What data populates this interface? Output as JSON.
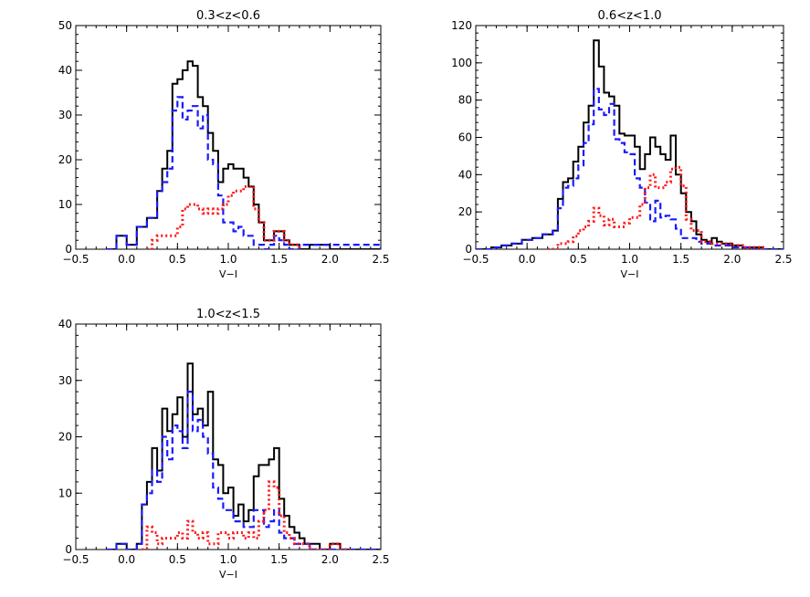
{
  "colors": {
    "total": "#000000",
    "blue": "#1a1aff",
    "red": "#ff1a1a"
  },
  "chart_data": [
    {
      "type": "histogram",
      "title": "0.3<z<0.6",
      "xlabel": "V−I",
      "xlim": [
        -0.5,
        2.5
      ],
      "ylim": [
        0,
        50
      ],
      "xticks": [
        "−0.5",
        "0.0",
        "0.5",
        "1.0",
        "1.5",
        "2.0",
        "2.5"
      ],
      "yticks": [
        "0",
        "10",
        "20",
        "30",
        "40",
        "50"
      ],
      "series": [
        {
          "style": "solid",
          "color": "total",
          "x": [
            -0.2,
            -0.1,
            0,
            0.1,
            0.2,
            0.3,
            0.35,
            0.4,
            0.45,
            0.5,
            0.55,
            0.6,
            0.65,
            0.7,
            0.75,
            0.8,
            0.85,
            0.9,
            0.95,
            1.0,
            1.05,
            1.1,
            1.15,
            1.2,
            1.25,
            1.3,
            1.35,
            1.4,
            1.45,
            1.5,
            1.55,
            1.6,
            1.7,
            1.8,
            2.0,
            2.5
          ],
          "y": [
            0,
            3,
            1,
            5,
            7,
            13,
            18,
            22,
            37,
            38,
            40,
            42,
            41,
            34,
            32,
            26,
            22,
            15,
            18,
            19,
            18,
            18,
            16,
            14,
            10,
            6,
            2,
            2,
            4,
            4,
            2,
            1,
            0,
            1,
            0,
            0
          ]
        },
        {
          "style": "dashed",
          "color": "blue",
          "x": [
            -0.2,
            -0.1,
            0,
            0.1,
            0.2,
            0.3,
            0.35,
            0.4,
            0.45,
            0.5,
            0.55,
            0.6,
            0.65,
            0.7,
            0.75,
            0.8,
            0.85,
            0.9,
            0.95,
            1.0,
            1.05,
            1.1,
            1.15,
            1.2,
            1.25,
            1.3,
            1.35,
            1.4,
            1.45,
            1.5,
            1.55,
            1.6,
            1.7,
            2.5
          ],
          "y": [
            0,
            3,
            1,
            5,
            7,
            13,
            15,
            18,
            31,
            34,
            29,
            31,
            32,
            27,
            30,
            20,
            19,
            12,
            6,
            6,
            4,
            5,
            3,
            3,
            1,
            1,
            0,
            1,
            3,
            2,
            1,
            0,
            1,
            0
          ]
        },
        {
          "style": "dotted",
          "color": "red",
          "x": [
            0.2,
            0.25,
            0.3,
            0.4,
            0.5,
            0.55,
            0.6,
            0.65,
            0.7,
            0.75,
            0.8,
            0.85,
            0.9,
            0.95,
            1.0,
            1.05,
            1.1,
            1.15,
            1.2,
            1.25,
            1.3,
            1.35,
            1.4,
            1.45,
            1.5,
            1.55,
            1.6,
            1.7
          ],
          "y": [
            0,
            2,
            3,
            3,
            5,
            9,
            10,
            10,
            9,
            8,
            9,
            8,
            9,
            10,
            12,
            13,
            13,
            14,
            14,
            9,
            6,
            2,
            2,
            4,
            4,
            2,
            1,
            0
          ]
        }
      ]
    },
    {
      "type": "histogram",
      "title": "0.6<z<1.0",
      "xlabel": "V−I",
      "xlim": [
        -0.5,
        2.5
      ],
      "ylim": [
        0,
        120
      ],
      "xticks": [
        "−0.5",
        "0.0",
        "0.5",
        "1.0",
        "1.5",
        "2.0",
        "2.5"
      ],
      "yticks": [
        "0",
        "20",
        "40",
        "60",
        "80",
        "100",
        "120"
      ],
      "series": [
        {
          "style": "solid",
          "color": "total",
          "x": [
            -0.5,
            -0.35,
            -0.25,
            -0.15,
            -0.05,
            0.05,
            0.15,
            0.25,
            0.3,
            0.35,
            0.4,
            0.45,
            0.5,
            0.55,
            0.6,
            0.65,
            0.7,
            0.75,
            0.8,
            0.85,
            0.9,
            0.95,
            1.0,
            1.05,
            1.1,
            1.15,
            1.2,
            1.25,
            1.3,
            1.35,
            1.4,
            1.45,
            1.5,
            1.55,
            1.6,
            1.65,
            1.7,
            1.75,
            1.8,
            1.85,
            1.9,
            2.0,
            2.1,
            2.25,
            2.3,
            2.5
          ],
          "y": [
            0,
            1,
            2,
            3,
            5,
            6,
            8,
            10,
            27,
            36,
            38,
            47,
            55,
            68,
            77,
            112,
            98,
            84,
            82,
            77,
            62,
            61,
            61,
            55,
            43,
            51,
            60,
            55,
            51,
            48,
            61,
            40,
            30,
            20,
            15,
            8,
            5,
            4,
            6,
            4,
            3,
            2,
            1,
            1,
            0,
            0
          ]
        },
        {
          "style": "dashed",
          "color": "blue",
          "x": [
            -0.5,
            -0.35,
            -0.25,
            -0.15,
            -0.05,
            0.05,
            0.15,
            0.25,
            0.3,
            0.35,
            0.4,
            0.45,
            0.5,
            0.55,
            0.6,
            0.65,
            0.7,
            0.75,
            0.8,
            0.85,
            0.9,
            0.95,
            1.0,
            1.05,
            1.1,
            1.15,
            1.2,
            1.25,
            1.3,
            1.35,
            1.4,
            1.45,
            1.5,
            1.55,
            1.6,
            1.65,
            1.7,
            1.8,
            1.9,
            2.0,
            2.2,
            2.5
          ],
          "y": [
            0,
            1,
            2,
            3,
            5,
            6,
            8,
            10,
            22,
            33,
            34,
            38,
            45,
            57,
            67,
            86,
            75,
            72,
            78,
            59,
            57,
            52,
            51,
            38,
            33,
            25,
            15,
            26,
            17,
            18,
            16,
            11,
            6,
            6,
            6,
            4,
            3,
            2,
            2,
            1,
            0,
            0
          ]
        },
        {
          "style": "dotted",
          "color": "red",
          "x": [
            0.2,
            0.3,
            0.4,
            0.45,
            0.5,
            0.55,
            0.6,
            0.65,
            0.7,
            0.75,
            0.8,
            0.85,
            0.9,
            0.95,
            1.0,
            1.05,
            1.1,
            1.15,
            1.2,
            1.25,
            1.3,
            1.35,
            1.4,
            1.45,
            1.5,
            1.55,
            1.6,
            1.7,
            1.8,
            1.9,
            2.0,
            2.1,
            2.2,
            2.3
          ],
          "y": [
            0,
            3,
            4,
            7,
            10,
            12,
            15,
            22,
            18,
            13,
            16,
            12,
            12,
            14,
            17,
            17,
            24,
            33,
            40,
            33,
            33,
            36,
            43,
            44,
            34,
            16,
            10,
            4,
            3,
            3,
            2,
            1,
            1,
            0
          ]
        }
      ]
    },
    {
      "type": "histogram",
      "title": "1.0<z<1.5",
      "xlabel": "V−I",
      "xlim": [
        -0.5,
        2.5
      ],
      "ylim": [
        0,
        40
      ],
      "xticks": [
        "−0.5",
        "0.0",
        "0.5",
        "1.0",
        "1.5",
        "2.0",
        "2.5"
      ],
      "yticks": [
        "0",
        "10",
        "20",
        "30",
        "40"
      ],
      "series": [
        {
          "style": "solid",
          "color": "total",
          "x": [
            -0.2,
            -0.1,
            0,
            0.1,
            0.15,
            0.2,
            0.25,
            0.3,
            0.35,
            0.4,
            0.45,
            0.5,
            0.55,
            0.6,
            0.65,
            0.7,
            0.75,
            0.8,
            0.85,
            0.9,
            0.95,
            1.0,
            1.05,
            1.1,
            1.15,
            1.2,
            1.25,
            1.3,
            1.35,
            1.4,
            1.45,
            1.5,
            1.55,
            1.6,
            1.65,
            1.7,
            1.75,
            1.8,
            1.9,
            2.0,
            2.1,
            2.2,
            2.3,
            2.5
          ],
          "y": [
            0,
            1,
            0,
            1,
            8,
            12,
            18,
            14,
            25,
            21,
            24,
            27,
            20,
            33,
            24,
            25,
            22,
            28,
            16,
            15,
            10,
            11,
            6,
            8,
            5,
            7,
            13,
            15,
            15,
            16,
            18,
            9,
            6,
            4,
            3,
            2,
            1,
            1,
            0,
            1,
            0,
            0,
            0,
            0
          ]
        },
        {
          "style": "dashed",
          "color": "blue",
          "x": [
            -0.2,
            -0.1,
            0,
            0.1,
            0.15,
            0.2,
            0.25,
            0.3,
            0.35,
            0.4,
            0.45,
            0.5,
            0.55,
            0.6,
            0.65,
            0.7,
            0.75,
            0.8,
            0.85,
            0.9,
            0.95,
            1.0,
            1.05,
            1.1,
            1.15,
            1.2,
            1.25,
            1.3,
            1.35,
            1.4,
            1.45,
            1.5,
            1.55,
            1.6,
            1.65,
            1.7,
            1.8,
            2.0,
            2.5
          ],
          "y": [
            0,
            1,
            0,
            1,
            8,
            10,
            14,
            12,
            20,
            16,
            22,
            21,
            18,
            28,
            21,
            23,
            20,
            17,
            11,
            9,
            7,
            7,
            5,
            5,
            4,
            4,
            7,
            7,
            4,
            5,
            7,
            3,
            2,
            2,
            1,
            1,
            0,
            0,
            0
          ]
        },
        {
          "style": "dotted",
          "color": "red",
          "x": [
            0.15,
            0.2,
            0.25,
            0.3,
            0.35,
            0.4,
            0.5,
            0.55,
            0.6,
            0.65,
            0.7,
            0.75,
            0.8,
            0.85,
            0.9,
            0.95,
            1.0,
            1.05,
            1.1,
            1.15,
            1.2,
            1.25,
            1.3,
            1.35,
            1.4,
            1.45,
            1.5,
            1.55,
            1.6,
            1.65,
            1.7,
            1.8,
            1.9,
            2.0,
            2.1,
            2.2
          ],
          "y": [
            0,
            4,
            3,
            1,
            2,
            2,
            3,
            2,
            5,
            3,
            2,
            3,
            1,
            1,
            3,
            3,
            2,
            3,
            3,
            2,
            3,
            2,
            5,
            7,
            12,
            11,
            6,
            3,
            2,
            1,
            1,
            0,
            0,
            1,
            0,
            0
          ]
        }
      ]
    }
  ]
}
